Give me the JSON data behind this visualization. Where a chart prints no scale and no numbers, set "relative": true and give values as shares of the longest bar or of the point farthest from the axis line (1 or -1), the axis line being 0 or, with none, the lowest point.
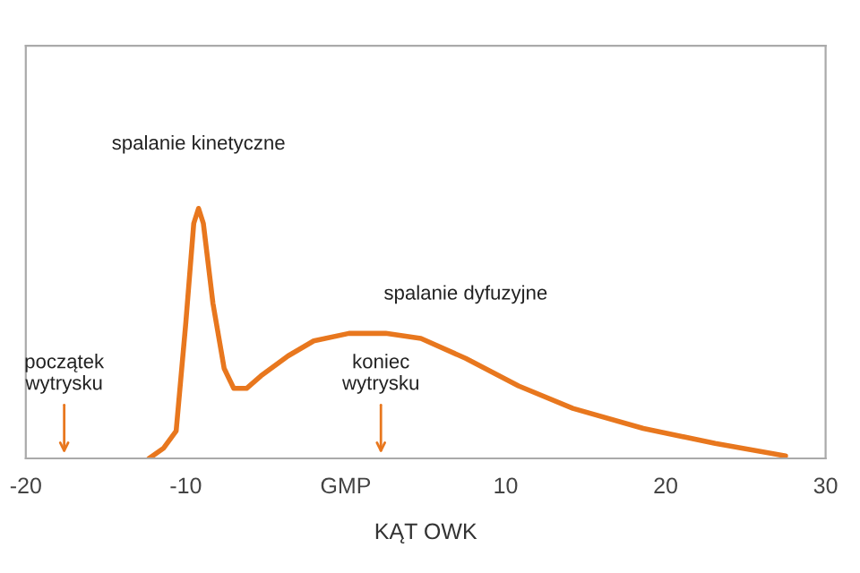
{
  "chart_data": {
    "type": "line",
    "relative": true,
    "xlabel": "KĄT OWK",
    "xlim": [
      -20,
      30
    ],
    "xticks": [
      -20,
      -10,
      {
        "value": 0,
        "label": "GMP"
      },
      10,
      20,
      30
    ],
    "x": [
      -12.3,
      -11.4,
      -10.6,
      -10.0,
      -9.5,
      -9.2,
      -8.9,
      -8.3,
      -7.6,
      -7.0,
      -6.2,
      -5.3,
      -3.6,
      -2.0,
      0.2,
      2.5,
      4.7,
      7.5,
      10.8,
      14.2,
      18.6,
      23.1,
      27.5
    ],
    "series": [
      {
        "color": "#e8771e",
        "values": [
          0,
          0.04,
          0.11,
          0.54,
          0.94,
          1.0,
          0.94,
          0.62,
          0.36,
          0.28,
          0.28,
          0.33,
          0.41,
          0.47,
          0.5,
          0.5,
          0.48,
          0.4,
          0.29,
          0.2,
          0.12,
          0.06,
          0.01
        ]
      }
    ],
    "annotations": [
      {
        "text": "spalanie kinetyczne",
        "x": -9.2,
        "y": 1.0
      },
      {
        "text": "spalanie dyfuzyjne",
        "x": 7.5,
        "y": 0.4
      },
      "początek\nwytrysku",
      "koniec\nwytrysku"
    ],
    "grid": false,
    "legend": false,
    "marker": "none",
    "line_style": "solid"
  }
}
